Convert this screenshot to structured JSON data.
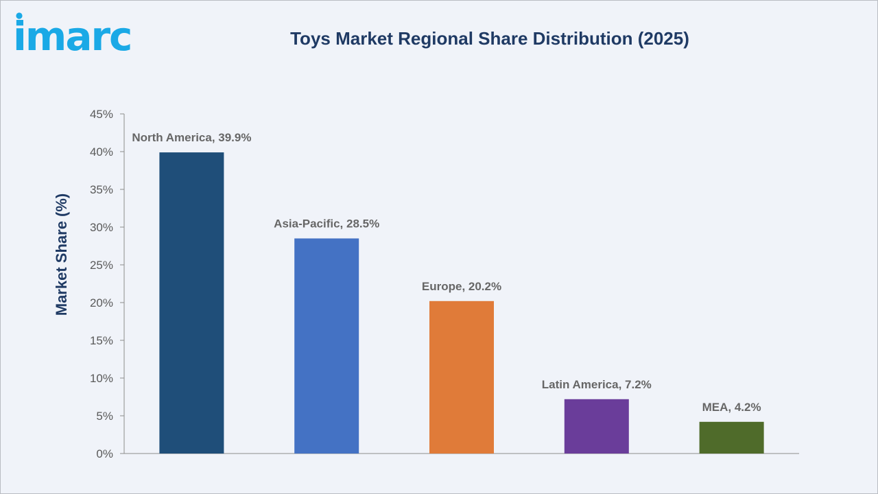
{
  "brand": {
    "logo_text": "imarc",
    "logo_color": "#1aa9e6"
  },
  "title": "Toys Market Regional Share Distribution (2025)",
  "colors": {
    "title": "#1f3a64",
    "axis_label": "#1f3a64",
    "tick_label": "#595959",
    "data_label": "#666666",
    "axis_line": "#8c8c8c"
  },
  "chart_data": {
    "type": "bar",
    "title": "Toys Market Regional Share Distribution (2025)",
    "xlabel": "",
    "ylabel": "Market Share (%)",
    "ylim": [
      0,
      45
    ],
    "ytick_step": 5,
    "ytick_labels": [
      "0%",
      "5%",
      "10%",
      "15%",
      "20%",
      "25%",
      "30%",
      "35%",
      "40%",
      "45%"
    ],
    "grid": false,
    "legend": "none",
    "categories": [
      "North America",
      "Asia-Pacific",
      "Europe",
      "Latin America",
      "MEA"
    ],
    "values": [
      39.9,
      28.5,
      20.2,
      7.2,
      4.2
    ],
    "data_labels": [
      "North America, 39.9%",
      "Asia-Pacific, 28.5%",
      "Europe, 20.2%",
      "Latin America, 7.2%",
      "MEA, 4.2%"
    ],
    "bar_colors": [
      "#1f4e79",
      "#4472c4",
      "#e07b39",
      "#6a3d9a",
      "#4f6b2a"
    ]
  }
}
